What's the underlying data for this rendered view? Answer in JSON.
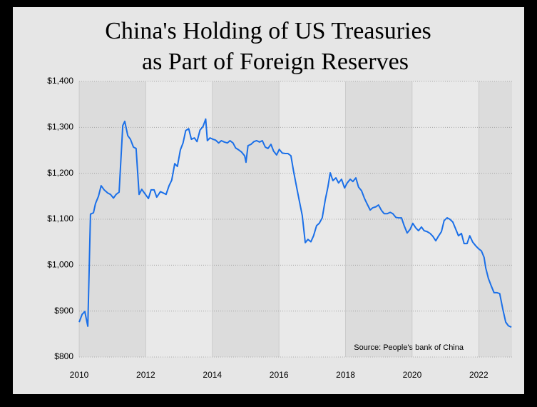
{
  "chart_data": {
    "type": "line",
    "title": [
      "China's Holding of US Treasuries",
      "as Part of Foreign Reserves"
    ],
    "annotation": "Source: People's bank of China",
    "color": "#1a6fe8",
    "grid": true,
    "xlim": [
      2010,
      2023
    ],
    "xticks": [
      2010,
      2012,
      2014,
      2016,
      2018,
      2020,
      2022
    ],
    "ylim": [
      800,
      1400
    ],
    "yticks": [
      {
        "value": 800,
        "label": "$800"
      },
      {
        "value": 900,
        "label": "$900"
      },
      {
        "value": 1000,
        "label": "$1,000"
      },
      {
        "value": 1100,
        "label": "$1,100"
      },
      {
        "value": 1200,
        "label": "$1,200"
      },
      {
        "value": 1300,
        "label": "$1,300"
      },
      {
        "value": 1400,
        "label": "$1,400"
      }
    ],
    "x": [
      2010.0,
      2010.09,
      2010.17,
      2010.26,
      2010.34,
      2010.43,
      2010.49,
      2010.58,
      2010.66,
      2010.75,
      2010.86,
      2010.94,
      2011.03,
      2011.11,
      2011.2,
      2011.31,
      2011.37,
      2011.46,
      2011.54,
      2011.63,
      2011.71,
      2011.8,
      2011.88,
      2011.99,
      2012.08,
      2012.16,
      2012.25,
      2012.33,
      2012.44,
      2012.53,
      2012.61,
      2012.7,
      2012.78,
      2012.87,
      2012.95,
      2013.04,
      2013.12,
      2013.2,
      2013.29,
      2013.37,
      2013.46,
      2013.54,
      2013.63,
      2013.72,
      2013.8,
      2013.85,
      2013.93,
      2014.02,
      2014.1,
      2014.19,
      2014.27,
      2014.36,
      2014.45,
      2014.53,
      2014.62,
      2014.7,
      2014.79,
      2014.88,
      2014.97,
      2015.01,
      2015.07,
      2015.16,
      2015.25,
      2015.33,
      2015.42,
      2015.5,
      2015.59,
      2015.67,
      2015.76,
      2015.84,
      2015.93,
      2016.01,
      2016.1,
      2016.19,
      2016.27,
      2016.36,
      2016.44,
      2016.53,
      2016.62,
      2016.7,
      2016.79,
      2016.87,
      2016.96,
      2017.04,
      2017.13,
      2017.21,
      2017.3,
      2017.39,
      2017.47,
      2017.54,
      2017.62,
      2017.71,
      2017.79,
      2017.88,
      2017.97,
      2018.05,
      2018.14,
      2018.22,
      2018.31,
      2018.39,
      2018.48,
      2018.57,
      2018.65,
      2018.74,
      2018.82,
      2018.91,
      2018.99,
      2019.08,
      2019.16,
      2019.25,
      2019.34,
      2019.42,
      2019.51,
      2019.59,
      2019.68,
      2019.76,
      2019.85,
      2019.94,
      2020.02,
      2020.11,
      2020.19,
      2020.28,
      2020.36,
      2020.45,
      2020.54,
      2020.62,
      2020.71,
      2020.79,
      2020.88,
      2020.96,
      2021.05,
      2021.13,
      2021.22,
      2021.3,
      2021.39,
      2021.48,
      2021.56,
      2021.65,
      2021.73,
      2021.82,
      2021.91,
      2021.99,
      2022.08,
      2022.16,
      2022.21,
      2022.29,
      2022.38,
      2022.46,
      2022.55,
      2022.63,
      2022.72,
      2022.81,
      2022.89,
      2022.98
    ],
    "values": [
      876,
      893,
      899,
      867,
      1111,
      1114,
      1134,
      1150,
      1173,
      1164,
      1157,
      1154,
      1146,
      1154,
      1159,
      1304,
      1313,
      1282,
      1274,
      1257,
      1254,
      1154,
      1165,
      1154,
      1145,
      1164,
      1164,
      1148,
      1160,
      1157,
      1154,
      1173,
      1185,
      1221,
      1215,
      1251,
      1266,
      1293,
      1297,
      1274,
      1277,
      1269,
      1294,
      1302,
      1318,
      1271,
      1277,
      1274,
      1272,
      1266,
      1271,
      1268,
      1266,
      1271,
      1266,
      1255,
      1251,
      1246,
      1238,
      1224,
      1260,
      1263,
      1269,
      1271,
      1268,
      1271,
      1257,
      1254,
      1263,
      1248,
      1240,
      1252,
      1244,
      1243,
      1243,
      1238,
      1204,
      1170,
      1137,
      1108,
      1049,
      1056,
      1051,
      1064,
      1086,
      1091,
      1103,
      1142,
      1170,
      1201,
      1184,
      1190,
      1179,
      1187,
      1168,
      1179,
      1187,
      1182,
      1190,
      1170,
      1162,
      1145,
      1133,
      1120,
      1125,
      1127,
      1131,
      1119,
      1112,
      1112,
      1115,
      1112,
      1104,
      1103,
      1103,
      1086,
      1070,
      1078,
      1091,
      1081,
      1075,
      1083,
      1075,
      1073,
      1069,
      1063,
      1053,
      1063,
      1073,
      1097,
      1103,
      1100,
      1094,
      1080,
      1064,
      1069,
      1047,
      1047,
      1064,
      1050,
      1042,
      1036,
      1031,
      1017,
      994,
      971,
      954,
      940,
      940,
      938,
      905,
      876,
      868,
      865
    ]
  }
}
